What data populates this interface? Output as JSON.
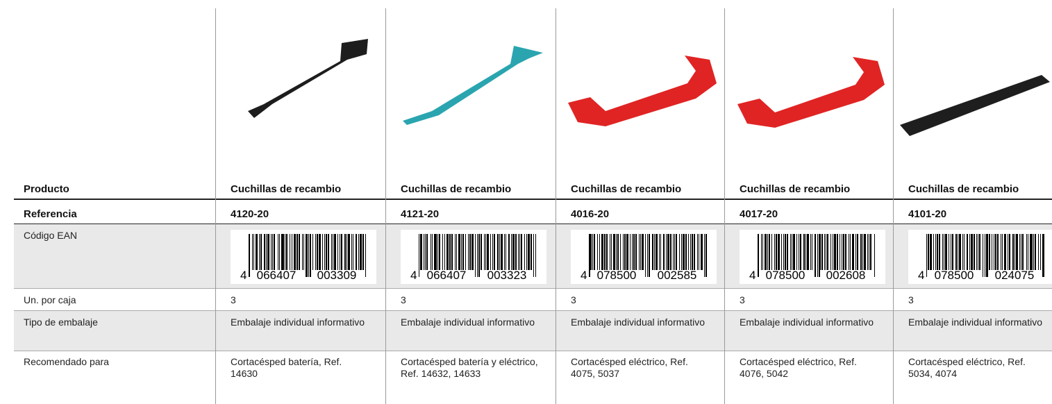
{
  "row_labels": {
    "producto": "Producto",
    "referencia": "Referencia",
    "ean": "Código EAN",
    "units": "Un. por caja",
    "packaging": "Tipo de embalaje",
    "recommended": "Recomendado para"
  },
  "columns": [
    {
      "producto": "Cuchillas de recambio",
      "referencia": "4120-20",
      "ean": {
        "first": "4",
        "left": "066407",
        "right": "003309"
      },
      "units": 3,
      "packaging": "Embalaje individual informativo",
      "recommended": "Cortacésped batería, Ref. 14630"
    },
    {
      "producto": "Cuchillas de recambio",
      "referencia": "4121-20",
      "ean": {
        "first": "4",
        "left": "066407",
        "right": "003323"
      },
      "units": 3,
      "packaging": "Embalaje individual informativo",
      "recommended": "Cortacésped batería y eléctrico, Ref. 14632, 14633"
    },
    {
      "producto": "Cuchillas de recambio",
      "referencia": "4016-20",
      "ean": {
        "first": "4",
        "left": "078500",
        "right": "002585"
      },
      "units": 3,
      "packaging": "Embalaje individual informativo",
      "recommended": "Cortacésped eléctrico, Ref. 4075, 5037"
    },
    {
      "producto": "Cuchillas de recambio",
      "referencia": "4017-20",
      "ean": {
        "first": "4",
        "left": "078500",
        "right": "002608"
      },
      "units": 3,
      "packaging": "Embalaje individual informativo",
      "recommended": "Cortacésped eléctrico, Ref. 4076, 5042"
    },
    {
      "producto": "Cuchillas de recambio",
      "referencia": "4101-20",
      "ean": {
        "first": "4",
        "left": "078500",
        "right": "024075"
      },
      "units": 3,
      "packaging": "Embalaje individual informativo",
      "recommended": "Cortacésped eléctrico, Ref. 5034, 4074"
    }
  ]
}
